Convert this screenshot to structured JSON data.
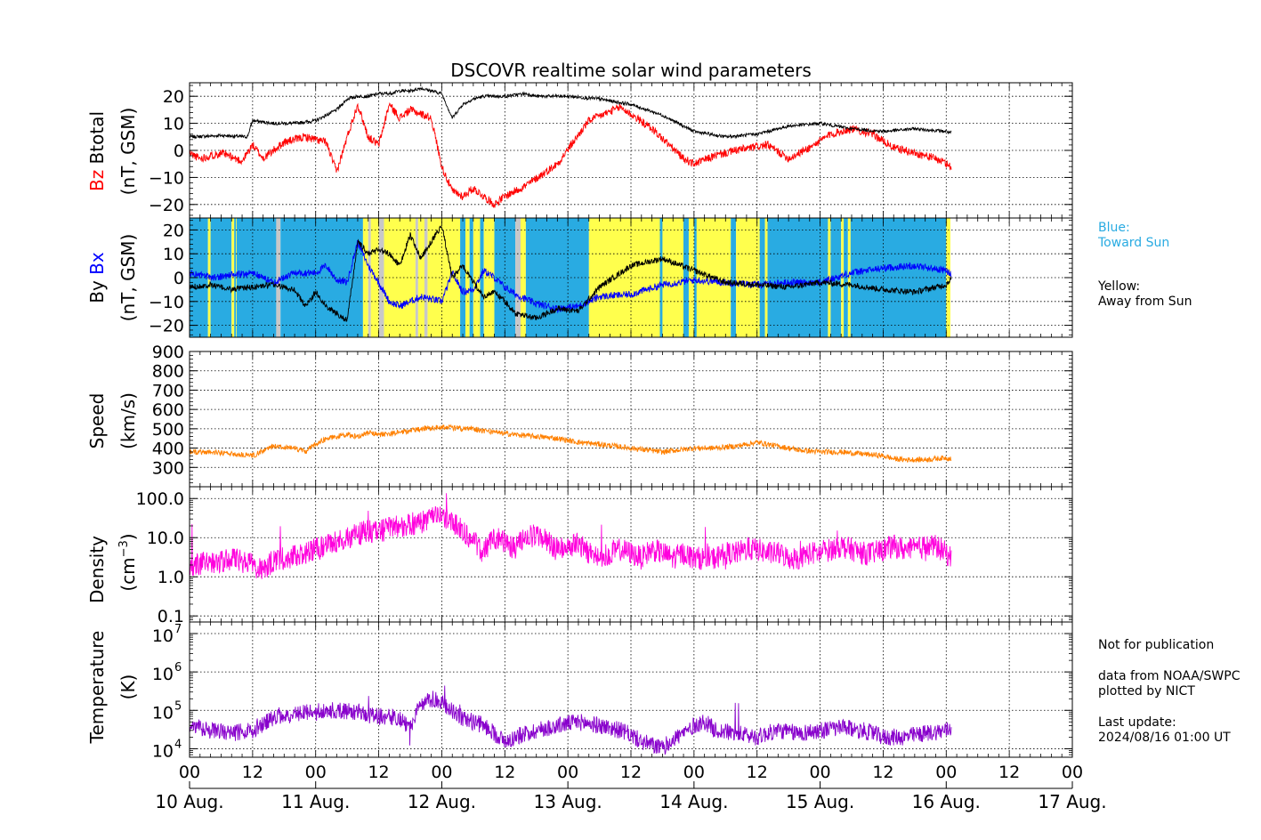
{
  "title": "DSCOVR realtime solar wind parameters",
  "colors": {
    "bz": "#ff0000",
    "btotal": "#000000",
    "bx": "#0000ff",
    "by": "#000000",
    "toward": "#29abe2",
    "away": "#ffff4d",
    "nodata": "#c8c8c8",
    "speed": "#ff8000",
    "density": "#ff00dd",
    "temperature": "#8800cc"
  },
  "panels": {
    "b": {
      "ylabel_parts": [
        "Bz",
        "Btotal"
      ],
      "ylabel_unit": "(nT, GSM)",
      "ticks": [
        "20",
        "10",
        "0",
        "−10",
        "−20"
      ]
    },
    "bxby": {
      "ylabel_parts": [
        "By",
        "Bx"
      ],
      "ylabel_unit": "(nT, GSM)",
      "ticks": [
        "20",
        "10",
        "0",
        "−10",
        "−20"
      ]
    },
    "speed": {
      "ylabel": "Speed",
      "ylabel_unit": "(km/s)",
      "ticks": [
        "900",
        "800",
        "700",
        "600",
        "500",
        "400",
        "300"
      ]
    },
    "density": {
      "ylabel": "Density",
      "ylabel_unit_base": "(cm",
      "ylabel_unit_exp": "−3",
      "ylabel_unit_close": ")",
      "ticks": [
        "100.0",
        "10.0",
        "1.0",
        "0.1"
      ]
    },
    "temperature": {
      "ylabel": "Temperature",
      "ylabel_unit": "(K)",
      "tick_base": "10",
      "tick_exps": [
        "7",
        "6",
        "5",
        "4"
      ]
    }
  },
  "x_tick_labels": [
    "00",
    "12",
    "00",
    "12",
    "00",
    "12",
    "00",
    "12",
    "00",
    "12",
    "00",
    "12",
    "00",
    "12",
    "00"
  ],
  "date_labels": [
    "10 Aug.",
    "11 Aug.",
    "12 Aug.",
    "13 Aug.",
    "14 Aug.",
    "15 Aug.",
    "16 Aug.",
    "17 Aug."
  ],
  "legend": {
    "blue_line1": "Blue:",
    "blue_line2": "Toward Sun",
    "yellow_line1": "Yellow:",
    "yellow_line2": "Away from Sun"
  },
  "notes": {
    "not_for_pub": "Not for publication",
    "data_from": "data from NOAA/SWPC",
    "plotted_by": "plotted by NICT",
    "last_update_label": "Last update:",
    "last_update_value": "2024/08/16 01:00 UT"
  },
  "chart_data": [
    {
      "type": "line",
      "panel": "Btotal / Bz",
      "ylabel": "Bz Btotal (nT, GSM)",
      "ylim": [
        -25,
        25
      ],
      "x_unit": "hours since 10 Aug. 00:00 UT",
      "xlim": [
        0,
        168
      ],
      "grid": true,
      "series": [
        {
          "name": "Btotal",
          "x": [
            0,
            6,
            11,
            12,
            16,
            20,
            24,
            28,
            30,
            32,
            34,
            36,
            38,
            40,
            42,
            44,
            46,
            48,
            50,
            52,
            54,
            56,
            60,
            64,
            66,
            72,
            78,
            84,
            90,
            96,
            102,
            108,
            114,
            120,
            126,
            132,
            138,
            144,
            145
          ],
          "values": [
            5,
            5.5,
            5,
            11,
            10,
            10,
            11,
            15,
            19,
            20,
            20,
            21,
            21,
            22,
            22,
            23,
            22,
            21,
            12,
            17,
            19,
            20,
            20,
            21,
            20,
            20,
            19,
            17,
            13,
            7,
            5,
            6,
            9,
            10,
            8,
            7,
            8,
            7,
            6.5
          ]
        },
        {
          "name": "Bz",
          "x": [
            0,
            2,
            6,
            10,
            12,
            14,
            18,
            22,
            24,
            26,
            28,
            30,
            32,
            34,
            36,
            38,
            40,
            42,
            46,
            48,
            50,
            52,
            54,
            58,
            60,
            64,
            70,
            76,
            82,
            88,
            94,
            96,
            100,
            104,
            110,
            114,
            118,
            122,
            126,
            130,
            134,
            138,
            142,
            144,
            145
          ],
          "values": [
            -1,
            -3,
            -1,
            -4,
            2,
            -3,
            3,
            5,
            4,
            3,
            -8,
            5,
            17,
            5,
            2,
            17,
            12,
            15,
            12,
            -6,
            -15,
            -17,
            -14,
            -20,
            -17,
            -13,
            -5,
            11,
            16,
            8,
            -3,
            -5,
            -2,
            0,
            2,
            -3,
            1,
            6,
            8,
            6,
            1,
            -1,
            -3,
            -5,
            -6
          ]
        }
      ]
    },
    {
      "type": "line",
      "panel": "Bx / By",
      "ylabel": "By Bx (nT, GSM)",
      "ylim": [
        -25,
        25
      ],
      "x_unit": "hours since 10 Aug. 00:00 UT",
      "xlim": [
        0,
        168
      ],
      "series": [
        {
          "name": "Bx",
          "x": [
            0,
            4,
            8,
            12,
            16,
            20,
            24,
            26,
            28,
            30,
            32,
            34,
            36,
            38,
            40,
            44,
            48,
            50,
            52,
            54,
            56,
            58,
            60,
            62,
            66,
            70,
            74,
            78,
            84,
            90,
            96,
            102,
            108,
            114,
            120,
            126,
            132,
            138,
            144,
            145
          ],
          "values": [
            2,
            0,
            1,
            2,
            -2,
            2,
            2,
            5,
            -1,
            -2,
            15,
            5,
            -2,
            -10,
            -12,
            -8,
            -10,
            2,
            -6,
            -5,
            3,
            0,
            -4,
            -7,
            -11,
            -13,
            -12,
            -8,
            -7,
            -3,
            -1,
            -2,
            -3,
            -2,
            -2,
            2,
            4,
            5,
            3,
            1
          ]
        },
        {
          "name": "By",
          "x": [
            0,
            4,
            8,
            12,
            16,
            20,
            22,
            24,
            26,
            28,
            30,
            32,
            34,
            36,
            38,
            40,
            42,
            44,
            48,
            50,
            52,
            54,
            56,
            58,
            60,
            62,
            66,
            70,
            74,
            78,
            84,
            90,
            96,
            102,
            108,
            114,
            120,
            126,
            132,
            138,
            144,
            145
          ],
          "values": [
            -4,
            -3,
            -5,
            -4,
            -3,
            -5,
            -12,
            -6,
            -12,
            -15,
            -18,
            15,
            10,
            12,
            10,
            5,
            18,
            8,
            22,
            0,
            5,
            -2,
            -8,
            -6,
            -10,
            -15,
            -17,
            -13,
            -14,
            -4,
            5,
            8,
            3,
            -2,
            -3,
            -4,
            -2,
            -3,
            -5,
            -6,
            -3,
            0
          ]
        }
      ]
    },
    {
      "type": "line",
      "panel": "Speed",
      "ylabel": "Speed (km/s)",
      "ylim": [
        200,
        900
      ],
      "x_unit": "hours since 10 Aug. 00:00 UT",
      "xlim": [
        0,
        168
      ],
      "series": [
        {
          "name": "Speed",
          "x": [
            0,
            4,
            8,
            12,
            16,
            20,
            22,
            24,
            26,
            28,
            30,
            32,
            34,
            36,
            40,
            44,
            48,
            52,
            54,
            58,
            62,
            66,
            70,
            74,
            78,
            84,
            90,
            96,
            100,
            104,
            108,
            112,
            116,
            120,
            124,
            128,
            132,
            134,
            136,
            140,
            144,
            145
          ],
          "values": [
            380,
            380,
            370,
            360,
            410,
            400,
            380,
            420,
            450,
            460,
            470,
            460,
            480,
            470,
            480,
            500,
            510,
            500,
            500,
            480,
            470,
            460,
            450,
            430,
            420,
            400,
            380,
            400,
            400,
            410,
            430,
            410,
            390,
            380,
            380,
            370,
            360,
            345,
            340,
            340,
            350,
            345
          ]
        }
      ]
    },
    {
      "type": "line",
      "panel": "Density",
      "ylabel": "Density (cm^-3)",
      "y_scale": "log",
      "ylim": [
        0.07,
        200
      ],
      "x_unit": "hours since 10 Aug. 00:00 UT",
      "xlim": [
        0,
        168
      ],
      "series": [
        {
          "name": "Density",
          "x": [
            0,
            2,
            4,
            6,
            8,
            10,
            12,
            14,
            16,
            18,
            20,
            22,
            24,
            26,
            28,
            30,
            32,
            34,
            36,
            38,
            40,
            42,
            44,
            46,
            48,
            50,
            52,
            54,
            56,
            58,
            60,
            62,
            64,
            66,
            68,
            70,
            72,
            74,
            76,
            78,
            80,
            82,
            84,
            86,
            88,
            90,
            92,
            94,
            96,
            98,
            100,
            102,
            104,
            106,
            108,
            110,
            112,
            114,
            116,
            118,
            120,
            122,
            124,
            126,
            128,
            130,
            132,
            134,
            136,
            138,
            140,
            142,
            144,
            145
          ],
          "values": [
            2,
            2.2,
            2.5,
            2.3,
            3,
            2.5,
            2,
            1.5,
            2.5,
            3,
            3.5,
            4,
            5,
            6,
            8,
            10,
            12,
            15,
            14,
            18,
            20,
            22,
            25,
            30,
            35,
            25,
            15,
            8,
            4,
            10,
            8,
            5,
            10,
            12,
            8,
            5,
            6,
            7,
            4,
            3,
            4,
            5,
            4,
            3,
            5,
            4,
            3,
            4,
            3,
            3,
            3,
            4,
            4,
            5,
            5,
            4,
            4,
            3,
            3,
            4,
            4,
            5,
            6,
            5,
            4,
            4,
            5,
            6,
            5,
            5,
            6,
            6,
            4,
            3
          ]
        }
      ]
    },
    {
      "type": "line",
      "panel": "Temperature",
      "ylabel": "Temperature (K)",
      "y_scale": "log",
      "ylim": [
        6000,
        20000000
      ],
      "x_unit": "hours since 10 Aug. 00:00 UT",
      "xlim": [
        0,
        168
      ],
      "series": [
        {
          "name": "Temperature",
          "x": [
            0,
            4,
            8,
            12,
            16,
            20,
            24,
            28,
            32,
            36,
            40,
            42,
            44,
            46,
            48,
            50,
            52,
            54,
            56,
            58,
            60,
            62,
            64,
            66,
            70,
            74,
            78,
            82,
            86,
            90,
            94,
            96,
            98,
            100,
            104,
            108,
            112,
            116,
            120,
            124,
            128,
            132,
            136,
            140,
            144,
            145
          ],
          "values": [
            40000,
            30000,
            25000,
            30000,
            60000,
            80000,
            90000,
            100000,
            90000,
            70000,
            60000,
            30000,
            120000,
            200000,
            150000,
            100000,
            60000,
            50000,
            40000,
            25000,
            15000,
            20000,
            25000,
            30000,
            40000,
            50000,
            40000,
            30000,
            15000,
            10000,
            25000,
            40000,
            50000,
            30000,
            25000,
            20000,
            30000,
            25000,
            30000,
            35000,
            30000,
            20000,
            20000,
            25000,
            30000,
            35000
          ]
        }
      ]
    }
  ]
}
